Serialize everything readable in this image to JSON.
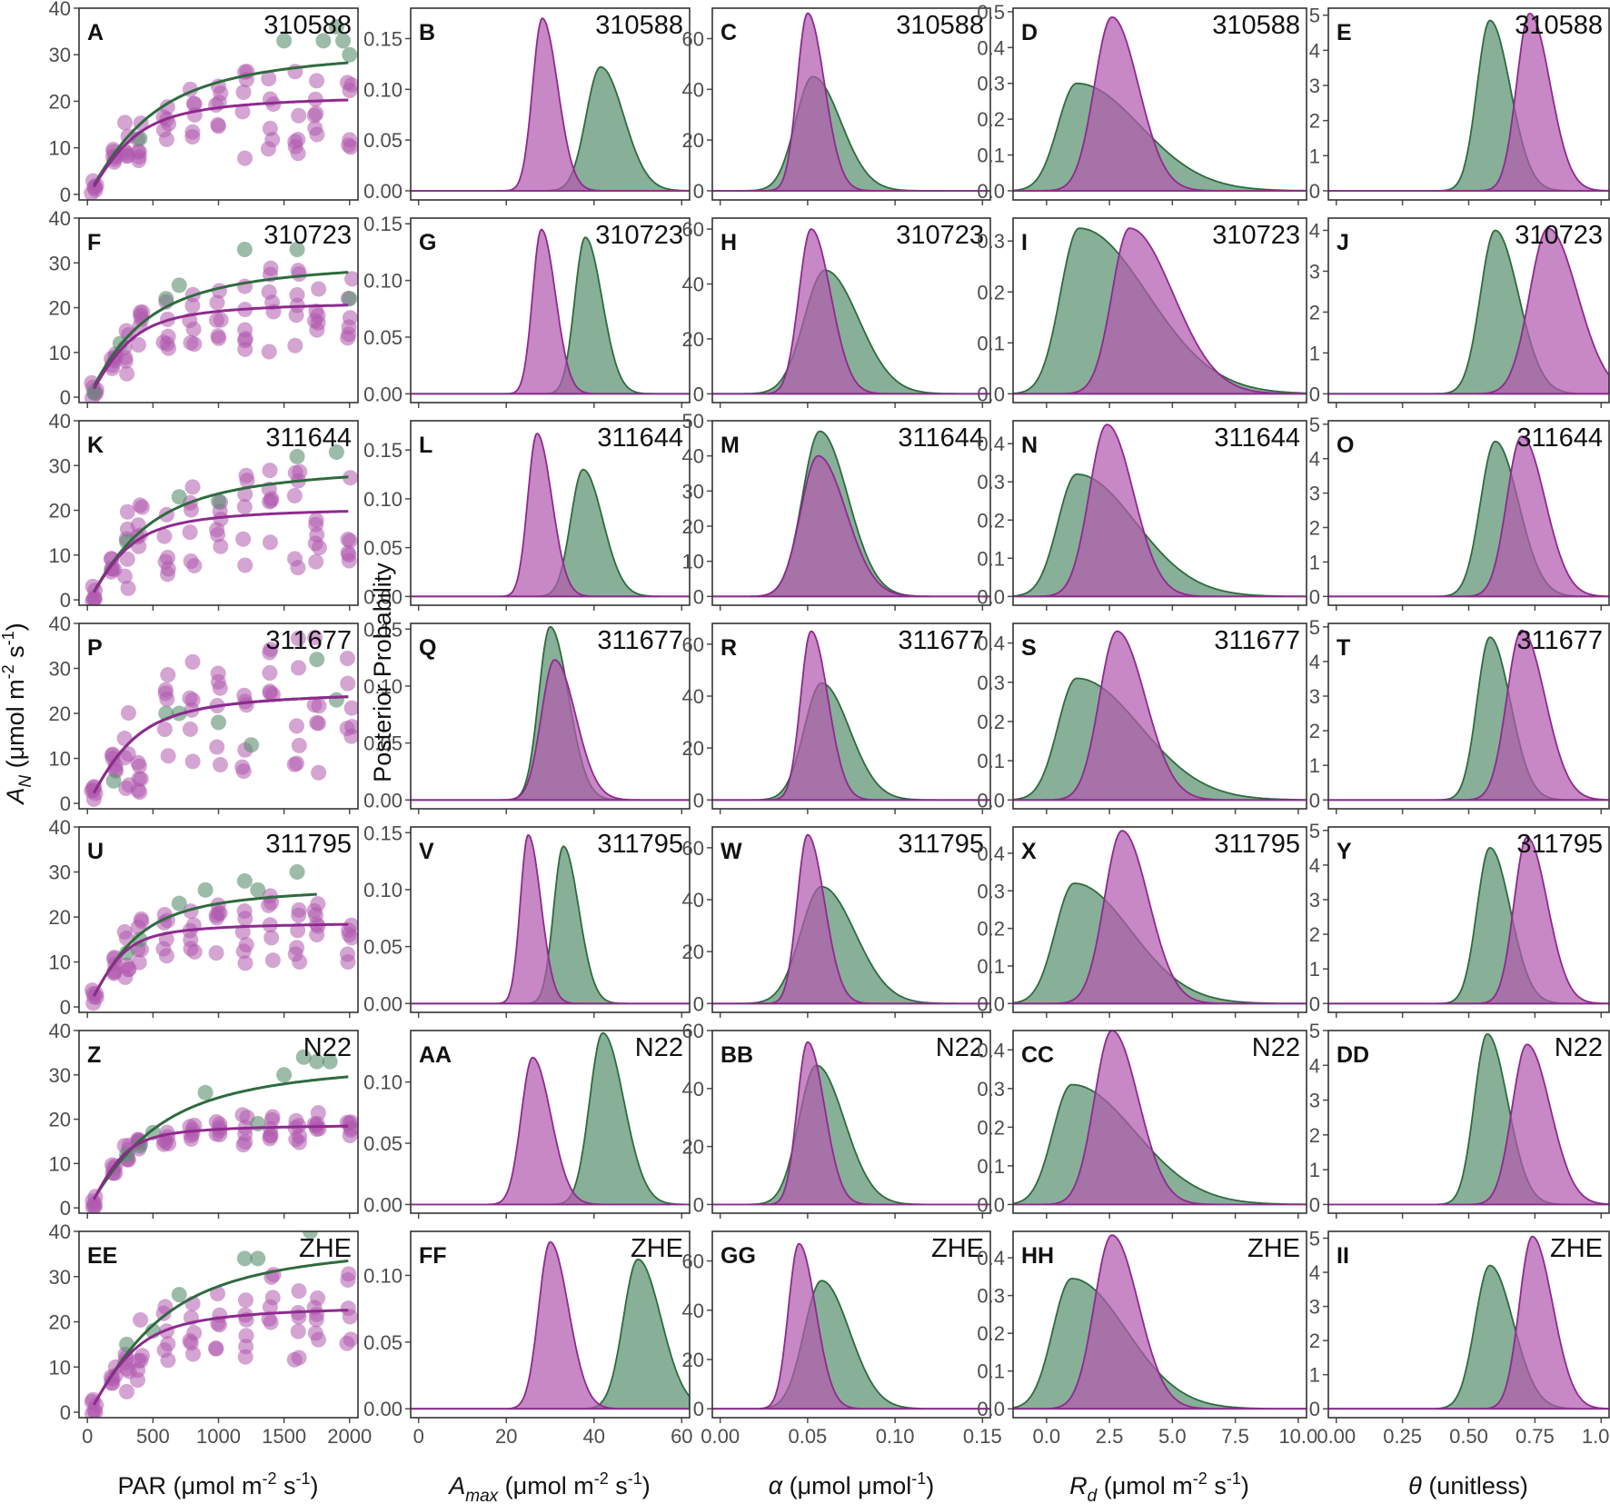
{
  "figure": {
    "accessions": [
      "310588",
      "310723",
      "311644",
      "311677",
      "311795",
      "N22",
      "ZHE"
    ],
    "y_axis_left": {
      "main": "A",
      "sub": "N",
      "rest": " (μmol m",
      "sup1": "-2",
      "mid": " s",
      "sup2": "-1",
      "close": ")"
    },
    "y_axis_posterior": "Posterior Probability",
    "x_axis_titles": [
      {
        "pre": "PAR (μmol m",
        "sup1": "-2",
        "mid": " s",
        "sup2": "-1",
        "close": ")"
      },
      {
        "main": "A",
        "sub": "max",
        "rest": " (μmol m",
        "sup1": "-2",
        "mid": " s",
        "sup2": "-1",
        "close": ")"
      },
      {
        "main": "α",
        "rest": " (μmol μmol",
        "sup1": "-1",
        "close": ")"
      },
      {
        "main": "R",
        "sub": "d",
        "rest": " (μmol m",
        "sup1": "-2",
        "mid": " s",
        "sup2": "-1",
        "close": ")"
      },
      {
        "main": "θ",
        "rest": " (unitless)"
      }
    ],
    "colors": {
      "green": "#2e6b3e",
      "green_fill": "#5a9070",
      "purple": "#8e2a8e",
      "purple_fill": "#b15aae",
      "dark": "#1a1a1a"
    }
  },
  "chart_data": {
    "type": "small-multiples: scatter with fitted light-response curves (column 1) and posterior density curves (columns 2-5)",
    "columns": [
      {
        "parameter": "A_N vs PAR",
        "xlim": [
          0,
          2000
        ],
        "xticks": [
          "0",
          "500",
          "1000",
          "1500",
          "2000"
        ]
      },
      {
        "parameter": "Amax",
        "xlim": [
          0,
          60
        ],
        "xticks": [
          "0",
          "20",
          "40",
          "60"
        ]
      },
      {
        "parameter": "alpha",
        "xlim": [
          0,
          0.15
        ],
        "xticks": [
          "0.00",
          "0.05",
          "0.10",
          "0.15"
        ]
      },
      {
        "parameter": "Rd",
        "xlim": [
          -1,
          10
        ],
        "xticks": [
          "0.0",
          "2.5",
          "5.0",
          "7.5",
          "10.0"
        ]
      },
      {
        "parameter": "theta",
        "xlim": [
          0,
          1
        ],
        "xticks": [
          "0.00",
          "0.25",
          "0.50",
          "0.75",
          "1.00"
        ]
      }
    ],
    "par_levels": [
      50,
      200,
      300,
      400,
      600,
      800,
      1000,
      1200,
      1400,
      1600,
      1750,
      2000
    ],
    "rows": [
      {
        "accession": "310588",
        "letters": [
          "A",
          "B",
          "C",
          "D",
          "E"
        ],
        "ylabels": [
          [
            "0",
            "10",
            "20",
            "30",
            "40"
          ],
          [
            "0.00",
            "0.05",
            "0.10",
            "0.15"
          ],
          [
            "0",
            "20",
            "40",
            "60"
          ],
          [
            "0.0",
            "0.1",
            "0.2",
            "0.3",
            "0.4",
            "0.5"
          ],
          [
            "0",
            "1",
            "2",
            "3",
            "4",
            "5"
          ]
        ],
        "ymax": [
          40,
          0.18,
          72,
          0.51,
          5.2
        ],
        "green_curve": {
          "amax": 33.0,
          "alpha": 0.052,
          "theta": 0.62,
          "rd": 0.5
        },
        "purple_curve": {
          "amax": 22.5,
          "alpha": 0.05,
          "theta": 0.75,
          "rd": 0.8
        },
        "green_points": [
          [
            400,
            12
          ],
          [
            1500,
            33
          ],
          [
            1800,
            33
          ],
          [
            1900,
            36
          ],
          [
            1950,
            33
          ],
          [
            2000,
            30
          ]
        ],
        "purple_spread": [
          8,
          16
        ],
        "amax": {
          "green": [
            41.5,
            3.3,
            0.122
          ],
          "purple": [
            28.2,
            2.2,
            0.17
          ]
        },
        "alpha": {
          "green": [
            0.053,
            0.01,
            45
          ],
          "purple": [
            0.05,
            0.006,
            70
          ]
        },
        "rd": {
          "green": [
            1.2,
            2.8,
            0.3
          ],
          "purple": [
            2.6,
            1.4,
            0.485
          ]
        },
        "theta": {
          "green": [
            0.58,
            0.07,
            4.85
          ],
          "purple": [
            0.73,
            0.07,
            5.05
          ]
        }
      },
      {
        "accession": "310723",
        "letters": [
          "F",
          "G",
          "H",
          "I",
          "J"
        ],
        "ylabels": [
          [
            "0",
            "10",
            "20",
            "30",
            "40"
          ],
          [
            "0.00",
            "0.05",
            "0.10",
            "0.15"
          ],
          [
            "0",
            "20",
            "40",
            "60"
          ],
          [
            "0.0",
            "0.1",
            "0.2",
            "0.3"
          ],
          [
            "0",
            "1",
            "2",
            "3",
            "4"
          ]
        ],
        "ymax": [
          40,
          0.155,
          64,
          0.345,
          4.3
        ],
        "green_curve": {
          "amax": 32.0,
          "alpha": 0.06,
          "theta": 0.58,
          "rd": 0.4
        },
        "purple_curve": {
          "amax": 22.5,
          "alpha": 0.055,
          "theta": 0.78,
          "rd": 0.8
        },
        "green_points": [
          [
            50,
            1
          ],
          [
            250,
            12
          ],
          [
            600,
            22
          ],
          [
            700,
            25
          ],
          [
            1200,
            33
          ],
          [
            1600,
            33
          ],
          [
            2000,
            22
          ]
        ],
        "purple_spread": [
          10,
          14
        ],
        "amax": {
          "green": [
            38.0,
            2.4,
            0.138
          ],
          "purple": [
            28.0,
            2.0,
            0.145
          ]
        },
        "alpha": {
          "green": [
            0.06,
            0.012,
            45
          ],
          "purple": [
            0.052,
            0.007,
            60
          ]
        },
        "rd": {
          "green": [
            1.3,
            3.0,
            0.325
          ],
          "purple": [
            3.3,
            2.3,
            0.325
          ]
        },
        "theta": {
          "green": [
            0.6,
            0.08,
            4.0
          ],
          "purple": [
            0.8,
            0.1,
            4.05
          ]
        }
      },
      {
        "accession": "311644",
        "letters": [
          "K",
          "L",
          "M",
          "N",
          "O"
        ],
        "ylabels": [
          [
            "0",
            "10",
            "20",
            "30",
            "40"
          ],
          [
            "0.00",
            "0.05",
            "0.10",
            "0.15"
          ],
          [
            "0",
            "10",
            "20",
            "30",
            "40",
            "50"
          ],
          [
            "0.0",
            "0.1",
            "0.2",
            "0.3",
            "0.4"
          ],
          [
            "0",
            "1",
            "2",
            "3",
            "4",
            "5"
          ]
        ],
        "ymax": [
          40,
          0.18,
          50,
          0.46,
          5.1
        ],
        "green_curve": {
          "amax": 32.0,
          "alpha": 0.055,
          "theta": 0.62,
          "rd": 0.8
        },
        "purple_curve": {
          "amax": 22.0,
          "alpha": 0.055,
          "theta": 0.75,
          "rd": 1.0
        },
        "green_points": [
          [
            300,
            13
          ],
          [
            700,
            23
          ],
          [
            1000,
            22
          ],
          [
            1600,
            32
          ],
          [
            1900,
            33
          ]
        ],
        "purple_spread": [
          14,
          16
        ],
        "amax": {
          "green": [
            37.5,
            2.8,
            0.13
          ],
          "purple": [
            27.0,
            2.1,
            0.167
          ]
        },
        "alpha": {
          "green": [
            0.057,
            0.01,
            47
          ],
          "purple": [
            0.056,
            0.01,
            40
          ]
        },
        "rd": {
          "green": [
            1.2,
            2.6,
            0.32
          ],
          "purple": [
            2.4,
            1.4,
            0.45
          ]
        },
        "theta": {
          "green": [
            0.6,
            0.08,
            4.5
          ],
          "purple": [
            0.7,
            0.08,
            4.65
          ]
        }
      },
      {
        "accession": "311677",
        "letters": [
          "P",
          "Q",
          "R",
          "S",
          "T"
        ],
        "ylabels": [
          [
            "0",
            "10",
            "20",
            "30",
            "40"
          ],
          [
            "0.00",
            "0.05",
            "0.10",
            "0.15"
          ],
          [
            "0",
            "20",
            "40",
            "60"
          ],
          [
            "0.0",
            "0.1",
            "0.2",
            "0.3",
            "0.4"
          ],
          [
            "0",
            "1",
            "2",
            "3",
            "4",
            "5"
          ]
        ],
        "ymax": [
          40,
          0.155,
          68,
          0.45,
          5.1
        ],
        "green_curve": {
          "amax": 26.0,
          "alpha": 0.058,
          "theta": 0.72,
          "rd": 0.5
        },
        "purple_curve": {
          "amax": 26.0,
          "alpha": 0.058,
          "theta": 0.72,
          "rd": 0.5
        },
        "green_points": [
          [
            200,
            5
          ],
          [
            600,
            20
          ],
          [
            700,
            20
          ],
          [
            1000,
            18
          ],
          [
            1250,
            13
          ],
          [
            1750,
            32
          ],
          [
            1900,
            23
          ]
        ],
        "purple_spread": [
          18,
          22
        ],
        "amax": {
          "green": [
            30.0,
            2.6,
            0.152
          ],
          "purple": [
            31.0,
            3.0,
            0.123
          ]
        },
        "alpha": {
          "green": [
            0.058,
            0.01,
            45
          ],
          "purple": [
            0.052,
            0.006,
            65
          ]
        },
        "rd": {
          "green": [
            1.2,
            2.8,
            0.31
          ],
          "purple": [
            2.8,
            1.5,
            0.43
          ]
        },
        "theta": {
          "green": [
            0.58,
            0.07,
            4.7
          ],
          "purple": [
            0.7,
            0.08,
            4.9
          ]
        }
      },
      {
        "accession": "311795",
        "letters": [
          "U",
          "V",
          "W",
          "X",
          "Y"
        ],
        "ylabels": [
          [
            "0",
            "10",
            "20",
            "30",
            "40"
          ],
          [
            "0.00",
            "0.05",
            "0.10",
            "0.15"
          ],
          [
            "0",
            "20",
            "40",
            "60"
          ],
          [
            "0.0",
            "0.1",
            "0.2",
            "0.3",
            "0.4"
          ],
          [
            "0",
            "1",
            "2",
            "3",
            "4",
            "5"
          ]
        ],
        "ymax": [
          40,
          0.155,
          68,
          0.47,
          5.1
        ],
        "green_curve": {
          "amax": 28.0,
          "alpha": 0.06,
          "theta": 0.7,
          "rd": 0.5
        },
        "purple_curve": {
          "amax": 19.5,
          "alpha": 0.06,
          "theta": 0.82,
          "rd": 0.5
        },
        "green_points": [
          [
            300,
            12
          ],
          [
            400,
            15
          ],
          [
            700,
            23
          ],
          [
            900,
            26
          ],
          [
            1200,
            28
          ],
          [
            1300,
            26
          ],
          [
            1600,
            30
          ]
        ],
        "purple_spread": [
          8,
          12
        ],
        "amax": {
          "green": [
            33.0,
            2.2,
            0.138
          ],
          "purple": [
            25.0,
            1.8,
            0.148
          ]
        },
        "alpha": {
          "green": [
            0.058,
            0.012,
            45
          ],
          "purple": [
            0.05,
            0.006,
            65
          ]
        },
        "rd": {
          "green": [
            1.1,
            2.5,
            0.32
          ],
          "purple": [
            3.0,
            1.4,
            0.46
          ]
        },
        "theta": {
          "green": [
            0.58,
            0.07,
            4.5
          ],
          "purple": [
            0.72,
            0.07,
            4.8
          ]
        }
      },
      {
        "accession": "N22",
        "letters": [
          "Z",
          "AA",
          "BB",
          "CC",
          "DD"
        ],
        "ylabels": [
          [
            "0",
            "10",
            "20",
            "30",
            "40"
          ],
          [
            "0.00",
            "0.05",
            "0.10"
          ],
          [
            "0",
            "20",
            "40",
            "60"
          ],
          [
            "0.0",
            "0.1",
            "0.2",
            "0.3",
            "0.4"
          ],
          [
            "0",
            "1",
            "2",
            "3",
            "4",
            "5"
          ]
        ],
        "ymax": [
          40,
          0.142,
          60,
          0.45,
          5.0
        ],
        "green_curve": {
          "amax": 35.0,
          "alpha": 0.052,
          "theta": 0.6,
          "rd": 0.5
        },
        "purple_curve": {
          "amax": 20.0,
          "alpha": 0.06,
          "theta": 0.85,
          "rd": 1.0
        },
        "green_points": [
          [
            300,
            12
          ],
          [
            400,
            14
          ],
          [
            500,
            17
          ],
          [
            900,
            26
          ],
          [
            1300,
            19
          ],
          [
            1500,
            30
          ],
          [
            1650,
            34
          ],
          [
            1750,
            33
          ],
          [
            1850,
            33
          ]
        ],
        "purple_spread": [
          3,
          5
        ],
        "amax": {
          "green": [
            42.0,
            3.0,
            0.14
          ],
          "purple": [
            26.0,
            2.6,
            0.12
          ]
        },
        "alpha": {
          "green": [
            0.055,
            0.01,
            48
          ],
          "purple": [
            0.05,
            0.006,
            56
          ]
        },
        "rd": {
          "green": [
            1.0,
            2.8,
            0.31
          ],
          "purple": [
            2.6,
            1.4,
            0.45
          ]
        },
        "theta": {
          "green": [
            0.57,
            0.07,
            4.9
          ],
          "purple": [
            0.72,
            0.08,
            4.6
          ]
        }
      },
      {
        "accession": "ZHE",
        "letters": [
          "EE",
          "FF",
          "GG",
          "HH",
          "II"
        ],
        "ylabels": [
          [
            "0",
            "10",
            "20",
            "30",
            "40"
          ],
          [
            "0.00",
            "0.05",
            "0.10"
          ],
          [
            "0",
            "20",
            "40",
            "60"
          ],
          [
            "0.0",
            "0.1",
            "0.2",
            "0.3",
            "0.4"
          ],
          [
            "0",
            "1",
            "2",
            "3",
            "4",
            "5"
          ]
        ],
        "ymax": [
          40,
          0.133,
          72,
          0.47,
          5.2
        ],
        "green_curve": {
          "amax": 40.0,
          "alpha": 0.055,
          "theta": 0.65,
          "rd": 1.0
        },
        "purple_curve": {
          "amax": 25.0,
          "alpha": 0.055,
          "theta": 0.78,
          "rd": 1.0
        },
        "green_points": [
          [
            300,
            15
          ],
          [
            500,
            18
          ],
          [
            700,
            26
          ],
          [
            1200,
            34
          ],
          [
            1300,
            34
          ],
          [
            1700,
            40
          ]
        ],
        "purple_spread": [
          12,
          14
        ],
        "amax": {
          "green": [
            50.0,
            3.3,
            0.112
          ],
          "purple": [
            30.0,
            2.6,
            0.125
          ]
        },
        "alpha": {
          "green": [
            0.058,
            0.01,
            52
          ],
          "purple": [
            0.045,
            0.006,
            67
          ]
        },
        "rd": {
          "green": [
            1.0,
            2.4,
            0.345
          ],
          "purple": [
            2.6,
            1.4,
            0.46
          ]
        },
        "theta": {
          "green": [
            0.58,
            0.08,
            4.2
          ],
          "purple": [
            0.74,
            0.07,
            5.05
          ]
        }
      }
    ]
  }
}
